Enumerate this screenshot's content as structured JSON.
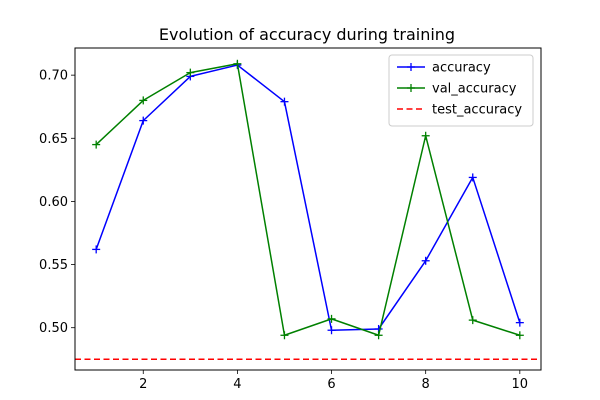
{
  "chart_data": {
    "type": "line",
    "title": "Evolution of accuracy during training",
    "xlabel": "",
    "ylabel": "",
    "xlim": [
      0.55,
      10.45
    ],
    "ylim": [
      0.4665,
      0.7215
    ],
    "x_ticks": [
      2,
      4,
      6,
      8,
      10
    ],
    "y_ticks": [
      0.5,
      0.55,
      0.6,
      0.65,
      0.7
    ],
    "y_tick_labels": [
      "0.50",
      "0.55",
      "0.60",
      "0.65",
      "0.70"
    ],
    "grid": false,
    "legend_position": "top-right",
    "x": [
      1,
      2,
      3,
      4,
      5,
      6,
      7,
      8,
      9,
      10
    ],
    "series": [
      {
        "name": "accuracy",
        "color": "#0000ff",
        "marker": "+",
        "values": [
          0.562,
          0.664,
          0.699,
          0.708,
          0.679,
          0.498,
          0.499,
          0.553,
          0.619,
          0.504
        ]
      },
      {
        "name": "val_accuracy",
        "color": "#008000",
        "marker": "+",
        "values": [
          0.645,
          0.68,
          0.702,
          0.709,
          0.494,
          0.507,
          0.494,
          0.652,
          0.506,
          0.494
        ]
      }
    ],
    "reference_lines": [
      {
        "name": "test_accuracy",
        "color": "#ff0000",
        "style": "dashed",
        "y": 0.475
      }
    ]
  }
}
